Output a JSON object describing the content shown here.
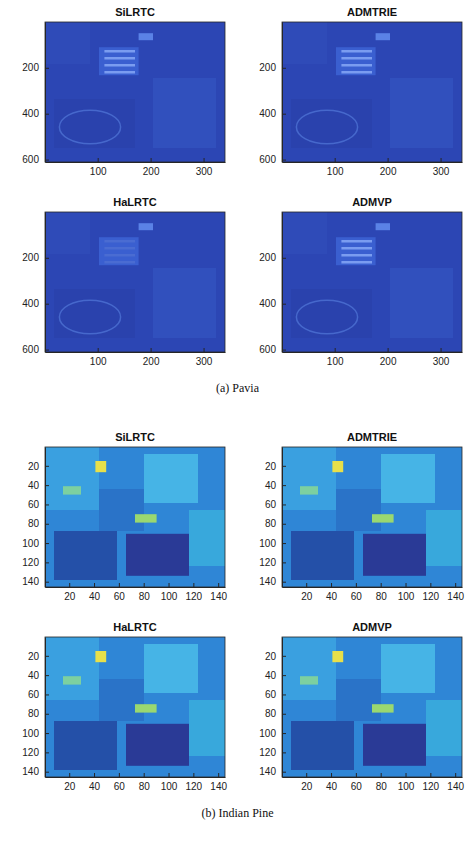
{
  "chart_data": [
    {
      "type": "image",
      "title": "SiLRTC",
      "xlim": [
        0.5,
        340.5
      ],
      "ylim": [
        0.5,
        610.5
      ],
      "xticks": [
        100,
        200,
        300
      ],
      "yticks": [
        200,
        400,
        600
      ]
    },
    {
      "type": "image",
      "title": "ADMTRIE",
      "xlim": [
        0.5,
        340.5
      ],
      "ylim": [
        0.5,
        610.5
      ],
      "xticks": [
        100,
        200,
        300
      ],
      "yticks": [
        200,
        400,
        600
      ]
    },
    {
      "type": "image",
      "title": "HaLRTC",
      "xlim": [
        0.5,
        340.5
      ],
      "ylim": [
        0.5,
        610.5
      ],
      "xticks": [
        100,
        200,
        300
      ],
      "yticks": [
        200,
        400,
        600
      ]
    },
    {
      "type": "image",
      "title": "ADMVP",
      "xlim": [
        0.5,
        340.5
      ],
      "ylim": [
        0.5,
        610.5
      ],
      "xticks": [
        100,
        200,
        300
      ],
      "yticks": [
        200,
        400,
        600
      ]
    },
    {
      "type": "image",
      "title": "SiLRTC",
      "xlim": [
        0.5,
        145.5
      ],
      "ylim": [
        0.5,
        145.5
      ],
      "xticks": [
        20,
        40,
        60,
        80,
        100,
        120,
        140
      ],
      "yticks": [
        20,
        40,
        60,
        80,
        100,
        120,
        140
      ]
    },
    {
      "type": "image",
      "title": "ADMTRIE",
      "xlim": [
        0.5,
        145.5
      ],
      "ylim": [
        0.5,
        145.5
      ],
      "xticks": [
        20,
        40,
        60,
        80,
        100,
        120,
        140
      ],
      "yticks": [
        20,
        40,
        60,
        80,
        100,
        120,
        140
      ]
    },
    {
      "type": "image",
      "title": "HaLRTC",
      "xlim": [
        0.5,
        145.5
      ],
      "ylim": [
        0.5,
        145.5
      ],
      "xticks": [
        20,
        40,
        60,
        80,
        100,
        120,
        140
      ],
      "yticks": [
        20,
        40,
        60,
        80,
        100,
        120,
        140
      ]
    },
    {
      "type": "image",
      "title": "ADMVP",
      "xlim": [
        0.5,
        145.5
      ],
      "ylim": [
        0.5,
        145.5
      ],
      "xticks": [
        20,
        40,
        60,
        80,
        100,
        120,
        140
      ],
      "yticks": [
        20,
        40,
        60,
        80,
        100,
        120,
        140
      ]
    }
  ],
  "captions": [
    "(a) Pavia",
    "(b) Indian Pine"
  ]
}
